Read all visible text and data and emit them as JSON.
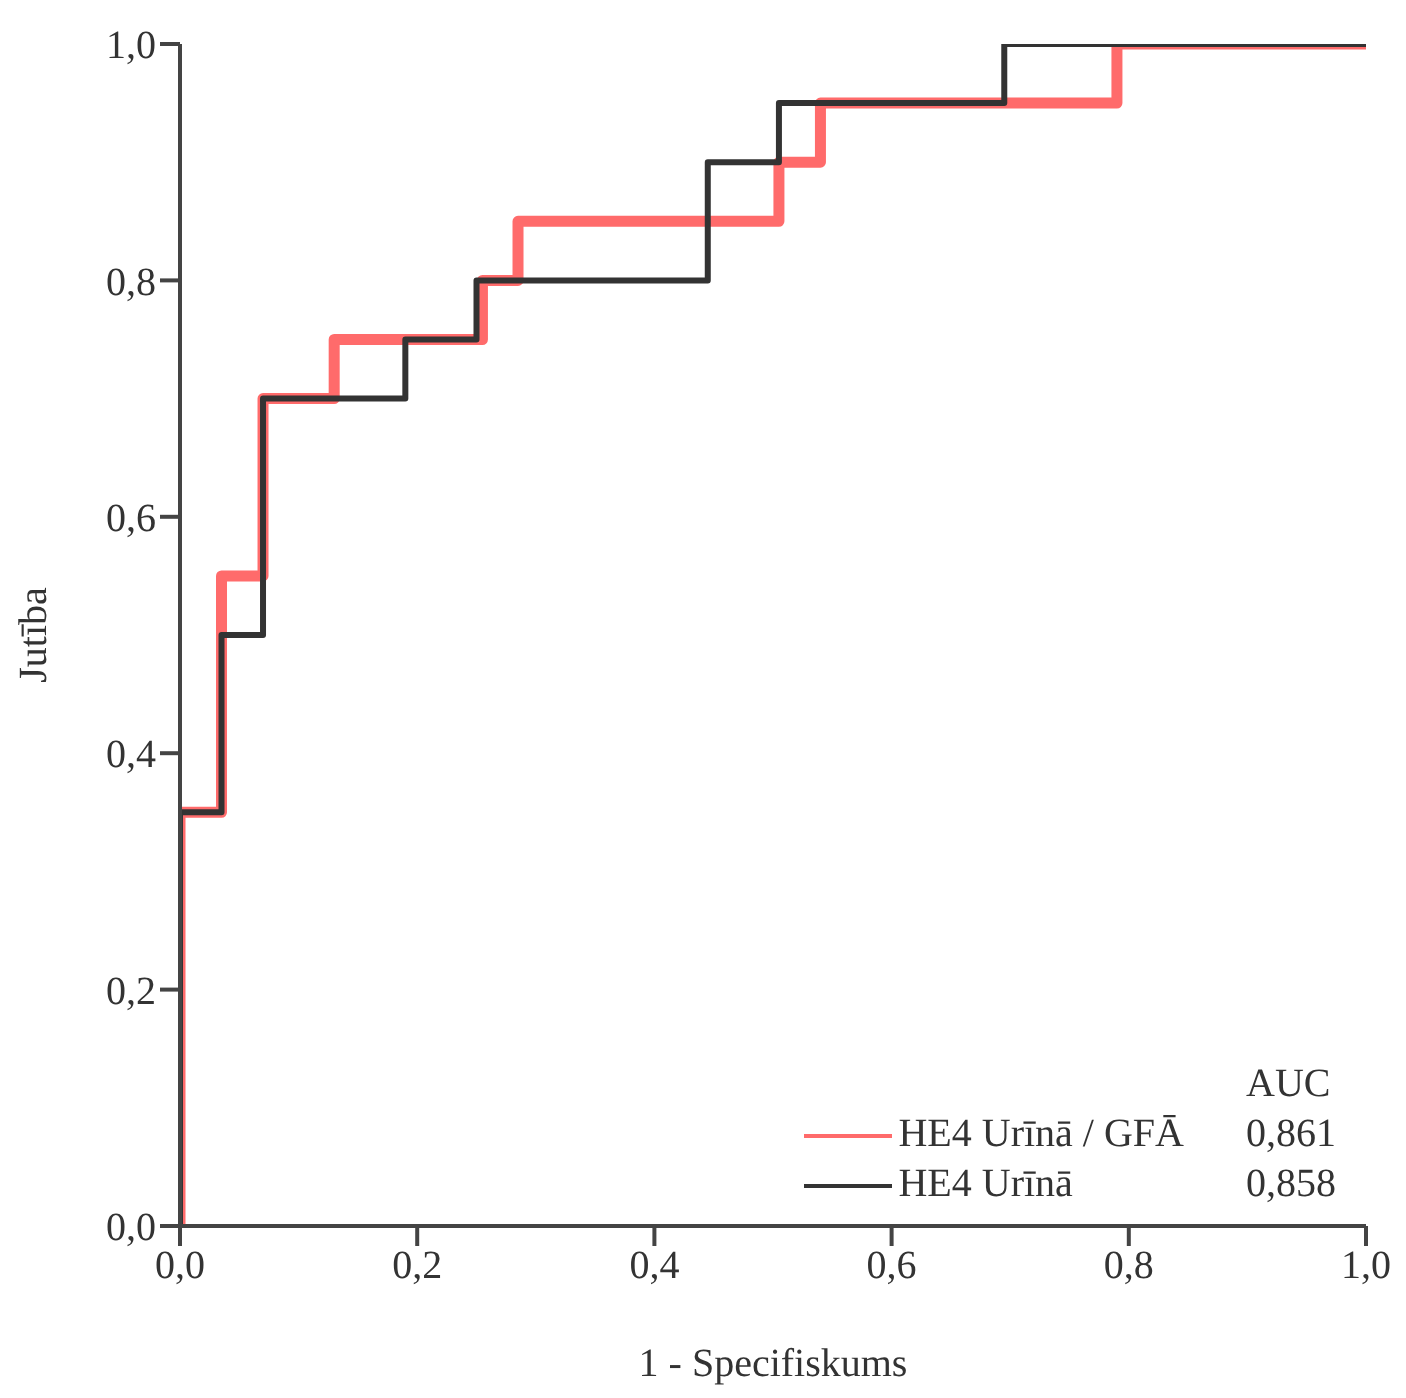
{
  "chart_data": {
    "type": "step",
    "xlabel": "1 - Specifiskums",
    "ylabel": "Jutība",
    "xlim": [
      0,
      1
    ],
    "ylim": [
      0,
      1
    ],
    "xticks": [
      {
        "value": 0,
        "label": "0,0"
      },
      {
        "value": 0.2,
        "label": "0,2"
      },
      {
        "value": 0.4,
        "label": "0,4"
      },
      {
        "value": 0.6,
        "label": "0,6"
      },
      {
        "value": 0.8,
        "label": "0,8"
      },
      {
        "value": 1,
        "label": "1,0"
      }
    ],
    "yticks": [
      {
        "value": 0,
        "label": "0,0"
      },
      {
        "value": 0.2,
        "label": "0,2"
      },
      {
        "value": 0.4,
        "label": "0,4"
      },
      {
        "value": 0.6,
        "label": "0,6"
      },
      {
        "value": 0.8,
        "label": "0,8"
      },
      {
        "value": 1,
        "label": "1,0"
      }
    ],
    "series": [
      {
        "name": "HE4 Urīnā / GFĀ",
        "color": "#ff6b6b",
        "x": [
          0,
          0,
          0.035,
          0.07,
          0.13,
          0.255,
          0.285,
          0.505,
          0.54,
          0.79,
          1
        ],
        "values": [
          0,
          0.35,
          0.55,
          0.7,
          0.75,
          0.8,
          0.85,
          0.9,
          0.95,
          1,
          1
        ]
      },
      {
        "name": "HE4 Urīnā",
        "color": "#333333",
        "x": [
          0,
          0,
          0.035,
          0.07,
          0.19,
          0.25,
          0.445,
          0.505,
          0.695,
          1
        ],
        "values": [
          0,
          0.35,
          0.5,
          0.7,
          0.75,
          0.8,
          0.9,
          0.95,
          1,
          1
        ]
      }
    ],
    "annotations": [
      "AUC",
      "0,861",
      "0,858"
    ],
    "legend": "bottom right",
    "grid": false,
    "marker": "none",
    "line_style": "solid"
  }
}
